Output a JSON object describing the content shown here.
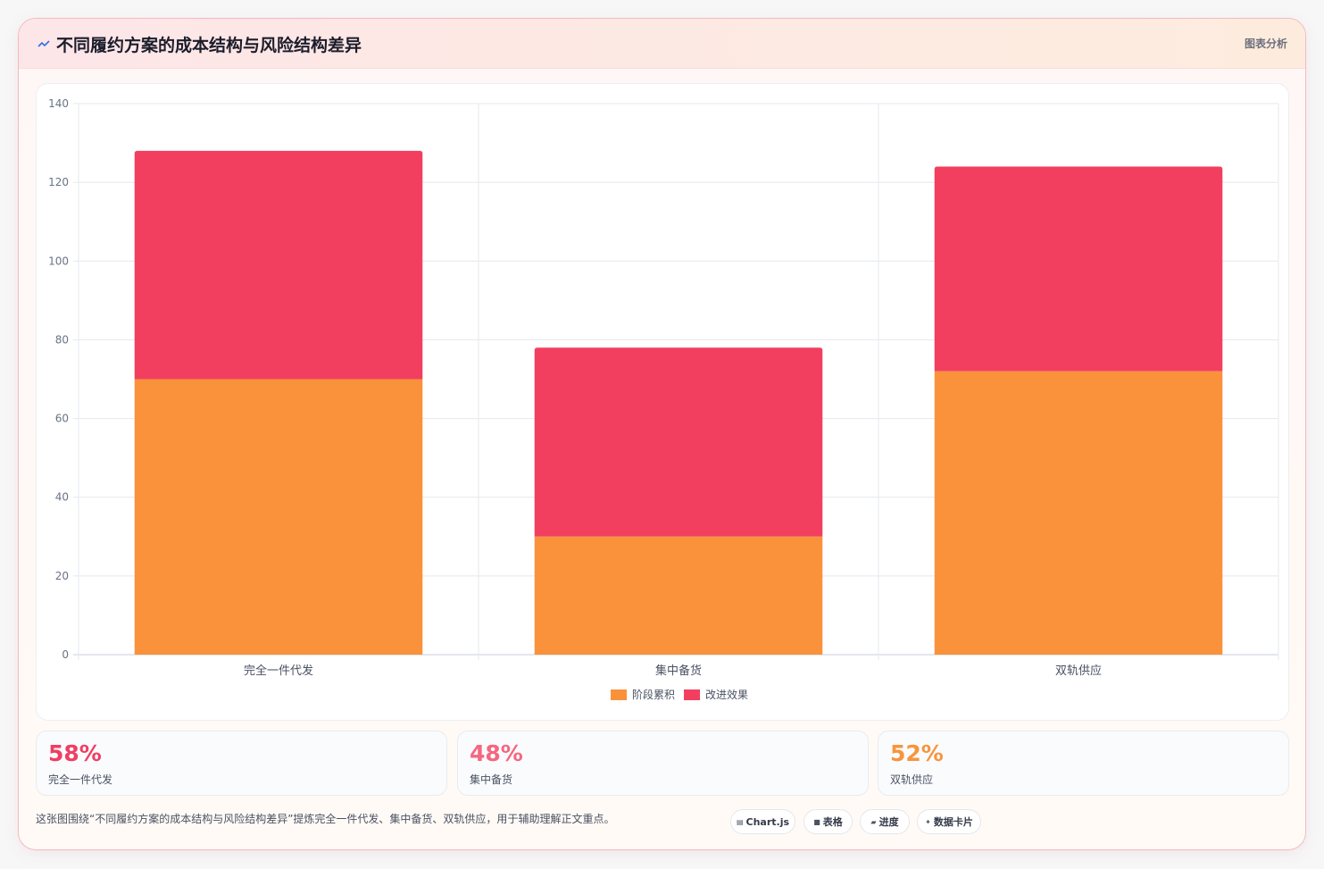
{
  "header": {
    "icon": "chart-trend-icon",
    "title": "不同履约方案的成本结构与风险结构差异",
    "tag": "图表分析"
  },
  "chart_data": {
    "type": "bar",
    "stacked": true,
    "categories": [
      "完全一件代发",
      "集中备货",
      "双轨供应"
    ],
    "series": [
      {
        "name": "阶段累积",
        "color": "#fa923c",
        "values": [
          70,
          30,
          72
        ]
      },
      {
        "name": "改进效果",
        "color": "#f23f60",
        "values": [
          58,
          48,
          52
        ]
      }
    ],
    "ylim": [
      0,
      140
    ],
    "yticks": [
      0,
      20,
      40,
      60,
      80,
      100,
      120,
      140
    ],
    "grid": true,
    "legend": "bottom"
  },
  "stats": [
    {
      "value": "58%",
      "label": "完全一件代发",
      "color": "#f03e62"
    },
    {
      "value": "48%",
      "label": "集中备货",
      "color": "#f4687f"
    },
    {
      "value": "52%",
      "label": "双轨供应",
      "color": "#f7953d"
    }
  ],
  "footnote": "这张图围绕“不同履约方案的成本结构与风险结构差异”提炼完全一件代发、集中备货、双轨供应，用于辅助理解正文重点。",
  "pills": [
    {
      "icon": "chart-icon",
      "glyph": "▤",
      "label": "Chart.js"
    },
    {
      "icon": "table-icon",
      "glyph": "■",
      "label": "表格"
    },
    {
      "icon": "progress-icon",
      "glyph": "▰",
      "label": "进度"
    },
    {
      "icon": "sparkle-icon",
      "glyph": "✦",
      "label": "数据卡片"
    }
  ]
}
